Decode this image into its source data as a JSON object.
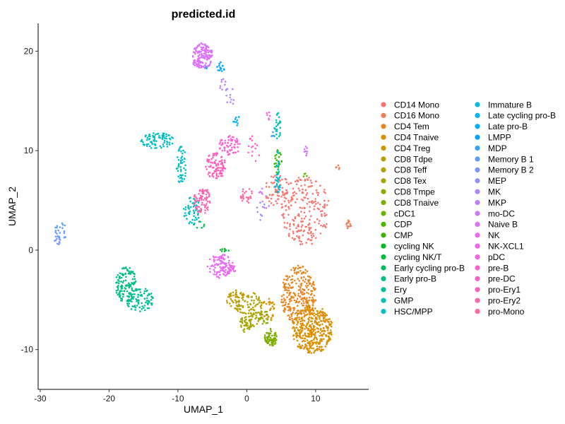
{
  "chart_data": {
    "type": "scatter",
    "title": "predicted.id",
    "xlabel": "UMAP_1",
    "ylabel": "UMAP_2",
    "xlim": [
      -30.3,
      17.7
    ],
    "ylim": [
      -14.0,
      22.8
    ],
    "xticks": [
      -30,
      -20,
      -10,
      0,
      10
    ],
    "yticks": [
      -10,
      0,
      10,
      20
    ],
    "grid": false,
    "legend_position": "right",
    "legend_columns": 2,
    "series": [
      {
        "name": "CD14 Mono",
        "color": "#F8766D",
        "clusters": [
          {
            "cx": 8.5,
            "cy": 4.0,
            "rx": 3.5,
            "ry": 3.5,
            "n": 220
          },
          {
            "cx": 4.5,
            "cy": 6.0,
            "rx": 2.0,
            "ry": 1.6,
            "n": 60
          }
        ]
      },
      {
        "name": "CD16 Mono",
        "color": "#F17D52",
        "clusters": [
          {
            "cx": 14.8,
            "cy": 2.6,
            "rx": 0.4,
            "ry": 0.5,
            "n": 12
          },
          {
            "cx": 13.2,
            "cy": 8.3,
            "rx": 0.25,
            "ry": 0.3,
            "n": 5
          }
        ]
      },
      {
        "name": "CD4 Tem",
        "color": "#E8851E",
        "clusters": [
          {
            "cx": 7.5,
            "cy": -4.5,
            "rx": 2.6,
            "ry": 3.0,
            "n": 280
          }
        ]
      },
      {
        "name": "CD4 Tnaive",
        "color": "#DB8E00",
        "clusters": [
          {
            "cx": 9.5,
            "cy": -8.0,
            "rx": 3.0,
            "ry": 2.4,
            "n": 380
          }
        ]
      },
      {
        "name": "CD4 Treg",
        "color": "#D09400",
        "clusters": [
          {
            "cx": 3.0,
            "cy": -6.0,
            "rx": 1.2,
            "ry": 1.2,
            "n": 40
          }
        ]
      },
      {
        "name": "CD8 Tdpe",
        "color": "#BB9D00",
        "clusters": [
          {
            "cx": -1.5,
            "cy": -5.0,
            "rx": 1.4,
            "ry": 1.0,
            "n": 60
          }
        ]
      },
      {
        "name": "CD8 Teff",
        "color": "#B0A200",
        "clusters": [
          {
            "cx": 0.5,
            "cy": -6.0,
            "rx": 1.8,
            "ry": 1.8,
            "n": 90
          }
        ]
      },
      {
        "name": "CD8 Tex",
        "color": "#A3A500",
        "clusters": [
          {
            "cx": -0.2,
            "cy": -7.5,
            "rx": 0.9,
            "ry": 0.8,
            "n": 30
          }
        ]
      },
      {
        "name": "CD8 Tmpe",
        "color": "#8FAA00",
        "clusters": [
          {
            "cx": 2.5,
            "cy": -6.8,
            "rx": 0.8,
            "ry": 0.7,
            "n": 20
          }
        ]
      },
      {
        "name": "CD8 Tnaive",
        "color": "#7CAE00",
        "clusters": [
          {
            "cx": 3.5,
            "cy": -8.8,
            "rx": 0.9,
            "ry": 0.9,
            "n": 80
          }
        ]
      },
      {
        "name": "cDC1",
        "color": "#65B400",
        "clusters": [
          {
            "cx": 8.5,
            "cy": 7.5,
            "rx": 0.3,
            "ry": 0.3,
            "n": 4
          }
        ]
      },
      {
        "name": "CDP",
        "color": "#48B800",
        "clusters": [
          {
            "cx": 4.2,
            "cy": 8.2,
            "rx": 0.4,
            "ry": 0.6,
            "n": 6
          }
        ]
      },
      {
        "name": "CMP",
        "color": "#39B600",
        "clusters": [
          {
            "cx": 4.5,
            "cy": 9.2,
            "rx": 0.6,
            "ry": 1.0,
            "n": 15
          }
        ]
      },
      {
        "name": "cycling NK",
        "color": "#00B81F",
        "clusters": [
          {
            "cx": -3.5,
            "cy": 0.0,
            "rx": 0.4,
            "ry": 0.2,
            "n": 4
          }
        ]
      },
      {
        "name": "cycling NK/T",
        "color": "#00BA38",
        "clusters": [
          {
            "cx": -3.0,
            "cy": 0.0,
            "rx": 0.4,
            "ry": 0.2,
            "n": 4
          }
        ]
      },
      {
        "name": "Early cycling pro-B",
        "color": "#00BC59",
        "clusters": [
          {
            "cx": -7.0,
            "cy": 2.5,
            "rx": 1.0,
            "ry": 0.4,
            "n": 8
          }
        ]
      },
      {
        "name": "Early pro-B",
        "color": "#00BF7D",
        "clusters": [
          {
            "cx": -17.5,
            "cy": -3.5,
            "rx": 1.6,
            "ry": 1.8,
            "n": 120
          }
        ]
      },
      {
        "name": "Ery",
        "color": "#00BF95",
        "clusters": [
          {
            "cx": -15.5,
            "cy": -5.0,
            "rx": 2.0,
            "ry": 1.2,
            "n": 90
          }
        ]
      },
      {
        "name": "GMP",
        "color": "#00C0AF",
        "clusters": [
          {
            "cx": 4.5,
            "cy": 8.0,
            "rx": 0.4,
            "ry": 2.0,
            "n": 20
          }
        ]
      },
      {
        "name": "HSC/MPP",
        "color": "#00BFC4",
        "clusters": [
          {
            "cx": -13.0,
            "cy": 11.0,
            "rx": 2.5,
            "ry": 0.8,
            "n": 80
          },
          {
            "cx": -9.5,
            "cy": 8.5,
            "rx": 0.7,
            "ry": 2.0,
            "n": 50
          },
          {
            "cx": -8.0,
            "cy": 4.0,
            "rx": 1.2,
            "ry": 1.4,
            "n": 50
          },
          {
            "cx": 4.5,
            "cy": 12.5,
            "rx": 0.5,
            "ry": 1.3,
            "n": 25
          }
        ]
      },
      {
        "name": "Immature B",
        "color": "#00BCD8",
        "clusters": [
          {
            "cx": 4.5,
            "cy": 6.5,
            "rx": 0.4,
            "ry": 1.2,
            "n": 15
          }
        ]
      },
      {
        "name": "Late cycling pro-B",
        "color": "#00B7E8",
        "clusters": [
          {
            "cx": -6.0,
            "cy": 18.5,
            "rx": 0.4,
            "ry": 0.3,
            "n": 4
          }
        ]
      },
      {
        "name": "Late pro-B",
        "color": "#00B0F6",
        "clusters": [
          {
            "cx": -1.5,
            "cy": 13.0,
            "rx": 0.5,
            "ry": 0.6,
            "n": 10
          }
        ]
      },
      {
        "name": "LMPP",
        "color": "#00A5FF",
        "clusters": [
          {
            "cx": -3.8,
            "cy": 18.4,
            "rx": 0.6,
            "ry": 0.5,
            "n": 14
          }
        ]
      },
      {
        "name": "MDP",
        "color": "#35A2FF",
        "clusters": [
          {
            "cx": 3.8,
            "cy": 11.5,
            "rx": 0.3,
            "ry": 0.5,
            "n": 5
          }
        ]
      },
      {
        "name": "Memory B 1",
        "color": "#619CFF",
        "clusters": [
          {
            "cx": -27.0,
            "cy": 1.8,
            "rx": 0.9,
            "ry": 1.0,
            "n": 24
          }
        ]
      },
      {
        "name": "Memory B 2",
        "color": "#7C96FF",
        "clusters": [
          {
            "cx": -27.5,
            "cy": 1.0,
            "rx": 0.4,
            "ry": 0.5,
            "n": 10
          }
        ]
      },
      {
        "name": "MEP",
        "color": "#9590FF",
        "clusters": [
          {
            "cx": 2.0,
            "cy": 4.0,
            "rx": 0.8,
            "ry": 1.0,
            "n": 8
          }
        ]
      },
      {
        "name": "MK",
        "color": "#AC88FF",
        "clusters": [
          {
            "cx": -2.5,
            "cy": 15.0,
            "rx": 0.8,
            "ry": 1.5,
            "n": 12
          }
        ]
      },
      {
        "name": "MKP",
        "color": "#BF80FF",
        "clusters": [
          {
            "cx": -3.5,
            "cy": 16.5,
            "rx": 0.5,
            "ry": 0.8,
            "n": 8
          }
        ]
      },
      {
        "name": "mo-DC",
        "color": "#CF78FF",
        "clusters": [
          {
            "cx": 8.5,
            "cy": 10.0,
            "rx": 0.3,
            "ry": 0.6,
            "n": 8
          },
          {
            "cx": 2.5,
            "cy": 5.0,
            "rx": 1.0,
            "ry": 1.5,
            "n": 10
          }
        ]
      },
      {
        "name": "Naive B",
        "color": "#DC71FA",
        "clusters": [
          {
            "cx": -6.5,
            "cy": 19.5,
            "rx": 1.6,
            "ry": 1.3,
            "n": 150
          }
        ]
      },
      {
        "name": "NK",
        "color": "#E76BF3",
        "clusters": [
          {
            "cx": -3.8,
            "cy": -1.6,
            "rx": 1.9,
            "ry": 1.2,
            "n": 110
          }
        ]
      },
      {
        "name": "NK-XCL1",
        "color": "#F066EA",
        "clusters": [
          {
            "cx": -2.0,
            "cy": -2.0,
            "rx": 0.6,
            "ry": 0.5,
            "n": 12
          }
        ]
      },
      {
        "name": "pDC",
        "color": "#F763E0",
        "clusters": [
          {
            "cx": 3.0,
            "cy": 13.5,
            "rx": 0.5,
            "ry": 0.5,
            "n": 6
          }
        ]
      },
      {
        "name": "pre-B",
        "color": "#FC61D5",
        "clusters": [
          {
            "cx": -2.5,
            "cy": 10.5,
            "rx": 1.6,
            "ry": 1.0,
            "n": 60
          }
        ]
      },
      {
        "name": "pre-DC",
        "color": "#FF61C9",
        "clusters": [
          {
            "cx": 1.0,
            "cy": 10.0,
            "rx": 1.0,
            "ry": 1.5,
            "n": 15
          }
        ]
      },
      {
        "name": "pro-Ery1",
        "color": "#FF62BC",
        "clusters": [
          {
            "cx": -4.5,
            "cy": 8.5,
            "rx": 1.5,
            "ry": 1.4,
            "n": 100
          }
        ]
      },
      {
        "name": "pro-Ery2",
        "color": "#FF65AE",
        "clusters": [
          {
            "cx": -6.5,
            "cy": 5.0,
            "rx": 1.2,
            "ry": 1.4,
            "n": 80
          }
        ]
      },
      {
        "name": "pro-Mono",
        "color": "#FF689F",
        "clusters": [
          {
            "cx": 0.0,
            "cy": 5.5,
            "rx": 0.9,
            "ry": 0.8,
            "n": 25
          }
        ]
      }
    ]
  }
}
